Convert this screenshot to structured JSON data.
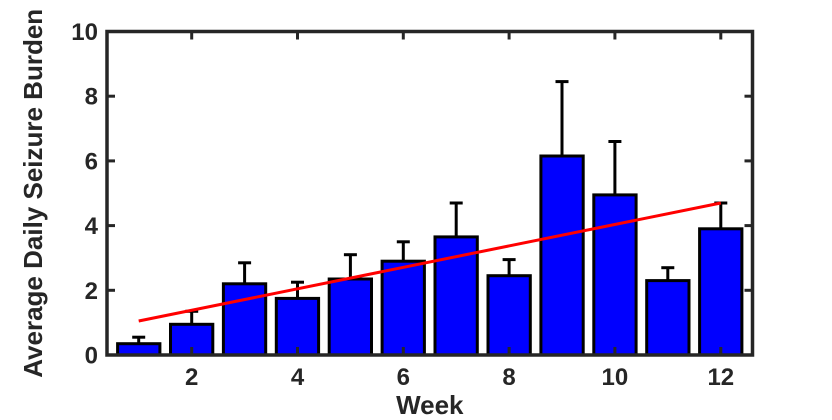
{
  "figure": {
    "background": "#ffffff"
  },
  "chart_data": {
    "type": "bar",
    "title": "",
    "xlabel": "Week",
    "ylabel": "Average Daily Seizure Burden",
    "categories": [
      1,
      2,
      3,
      4,
      5,
      6,
      7,
      8,
      9,
      10,
      11,
      12
    ],
    "series": [
      {
        "name": "Average Daily Seizure Burden",
        "values": [
          0.35,
          0.95,
          2.2,
          1.75,
          2.35,
          2.9,
          3.65,
          2.45,
          6.15,
          4.95,
          2.3,
          3.9
        ],
        "errors_upper": [
          0.2,
          0.4,
          0.65,
          0.5,
          0.75,
          0.6,
          1.05,
          0.5,
          2.3,
          1.65,
          0.4,
          0.8
        ]
      }
    ],
    "trend_line": {
      "x_start": 1,
      "y_start": 1.05,
      "x_end": 12,
      "y_end": 4.7,
      "color": "#ff0000"
    },
    "xlim": [
      0.4,
      12.6
    ],
    "ylim": [
      0,
      10
    ],
    "xticks": [
      2,
      4,
      6,
      8,
      10,
      12
    ],
    "yticks": [
      0,
      2,
      4,
      6,
      8,
      10
    ],
    "grid": false,
    "legend": null,
    "bar_width_fraction": 0.8,
    "bar_color": "#0000ff",
    "bar_edge_color": "#000000",
    "error_bar_color": "#000000",
    "axis_color": "#262626",
    "text_color": "#262626",
    "box": true,
    "tick_direction": "in"
  }
}
